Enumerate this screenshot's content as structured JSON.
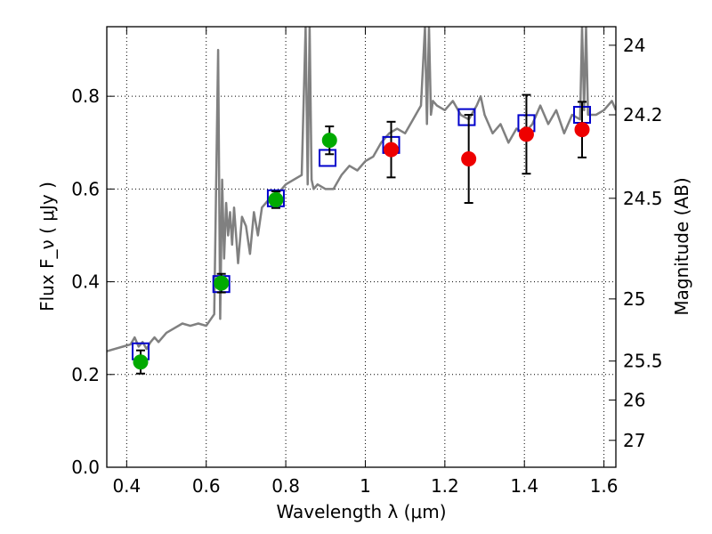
{
  "chart_data": {
    "type": "scatter",
    "xlabel": "Wavelength  λ (μm)",
    "ylabel": "Flux  F_ν  ( μJy )",
    "ylabel2": "Magnitude (AB)",
    "xlim": [
      0.35,
      1.63
    ],
    "ylim": [
      0.0,
      0.95
    ],
    "grid": true,
    "x_ticks": [
      0.4,
      0.6,
      0.8,
      1.0,
      1.2,
      1.4,
      1.6
    ],
    "x_tick_labels": [
      "0.4",
      "0.6",
      "0.8",
      "1",
      "1.2",
      "1.4",
      "1.6"
    ],
    "y_ticks": [
      0.0,
      0.2,
      0.4,
      0.6,
      0.8
    ],
    "y_tick_labels": [
      "0.0",
      "0.2",
      "0.4",
      "0.6",
      "0.8"
    ],
    "right_ticks": [
      {
        "label": "24",
        "flux": 0.91
      },
      {
        "label": "24.2",
        "flux": 0.76
      },
      {
        "label": "24.5",
        "flux": 0.58
      },
      {
        "label": "25",
        "flux": 0.363
      },
      {
        "label": "25.5",
        "flux": 0.229
      },
      {
        "label": "26",
        "flux": 0.145
      },
      {
        "label": "27",
        "flux": 0.058
      }
    ],
    "series": [
      {
        "kind": "model-spectrum",
        "color": "#808080",
        "x": [
          0.35,
          0.37,
          0.39,
          0.41,
          0.42,
          0.43,
          0.44,
          0.45,
          0.46,
          0.47,
          0.48,
          0.5,
          0.52,
          0.54,
          0.56,
          0.58,
          0.6,
          0.62,
          0.63,
          0.635,
          0.64,
          0.645,
          0.65,
          0.655,
          0.66,
          0.665,
          0.67,
          0.68,
          0.69,
          0.7,
          0.71,
          0.72,
          0.73,
          0.74,
          0.75,
          0.76,
          0.78,
          0.8,
          0.82,
          0.84,
          0.85,
          0.855,
          0.86,
          0.865,
          0.87,
          0.88,
          0.9,
          0.92,
          0.94,
          0.96,
          0.98,
          1.0,
          1.02,
          1.04,
          1.06,
          1.08,
          1.1,
          1.12,
          1.14,
          1.15,
          1.155,
          1.16,
          1.165,
          1.17,
          1.18,
          1.2,
          1.22,
          1.24,
          1.26,
          1.28,
          1.29,
          1.3,
          1.32,
          1.34,
          1.36,
          1.38,
          1.4,
          1.42,
          1.44,
          1.46,
          1.48,
          1.5,
          1.52,
          1.54,
          1.545,
          1.55,
          1.555,
          1.56,
          1.58,
          1.6,
          1.62,
          1.63
        ],
        "y": [
          0.25,
          0.255,
          0.26,
          0.265,
          0.28,
          0.26,
          0.27,
          0.255,
          0.27,
          0.28,
          0.27,
          0.29,
          0.3,
          0.31,
          0.305,
          0.31,
          0.305,
          0.33,
          0.9,
          0.32,
          0.62,
          0.45,
          0.57,
          0.5,
          0.55,
          0.48,
          0.56,
          0.44,
          0.54,
          0.52,
          0.46,
          0.55,
          0.5,
          0.56,
          0.57,
          0.58,
          0.59,
          0.61,
          0.62,
          0.63,
          0.95,
          0.61,
          0.95,
          0.62,
          0.6,
          0.61,
          0.6,
          0.6,
          0.63,
          0.65,
          0.64,
          0.66,
          0.67,
          0.7,
          0.72,
          0.73,
          0.72,
          0.75,
          0.78,
          0.95,
          0.74,
          0.95,
          0.76,
          0.79,
          0.78,
          0.77,
          0.79,
          0.76,
          0.75,
          0.78,
          0.8,
          0.76,
          0.72,
          0.74,
          0.7,
          0.73,
          0.72,
          0.74,
          0.78,
          0.74,
          0.77,
          0.72,
          0.76,
          0.75,
          0.95,
          0.77,
          0.95,
          0.76,
          0.76,
          0.77,
          0.79,
          0.77
        ]
      },
      {
        "kind": "model-photometry",
        "marker": "open-square",
        "color": "#0000cc",
        "x": [
          0.435,
          0.638,
          0.775,
          0.905,
          1.065,
          1.255,
          1.405,
          1.545
        ],
        "y": [
          0.25,
          0.395,
          0.58,
          0.667,
          0.695,
          0.755,
          0.742,
          0.76
        ]
      },
      {
        "kind": "observed-optical",
        "marker": "filled-circle",
        "color": "#00aa00",
        "x": [
          0.435,
          0.638,
          0.775,
          0.91
        ],
        "y": [
          0.227,
          0.397,
          0.577,
          0.705
        ],
        "err": [
          0.025,
          0.02,
          0.018,
          0.03
        ]
      },
      {
        "kind": "observed-nir",
        "marker": "filled-circle",
        "color": "#ee0000",
        "x": [
          1.065,
          1.26,
          1.405,
          1.545
        ],
        "y": [
          0.685,
          0.665,
          0.718,
          0.728
        ],
        "err": [
          0.06,
          0.095,
          0.085,
          0.06
        ]
      }
    ]
  }
}
